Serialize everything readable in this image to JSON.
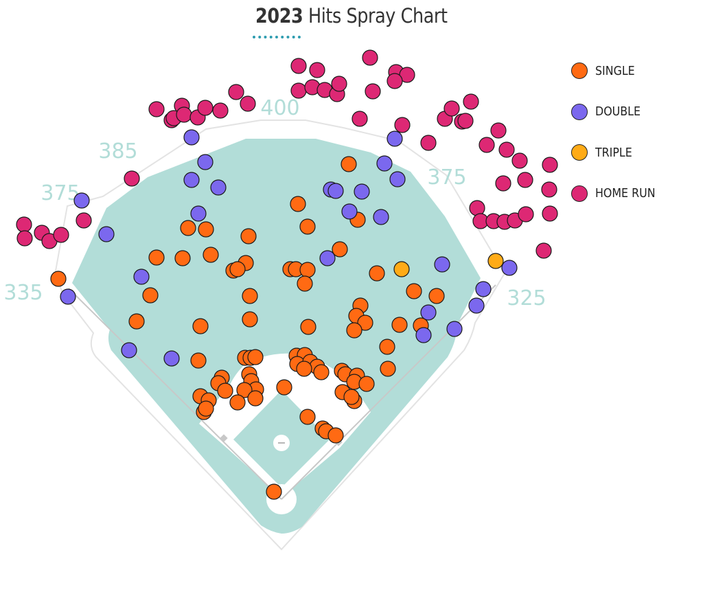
{
  "title": {
    "year": "2023",
    "text": "Hits Spray Chart"
  },
  "field": {
    "grass_color": "#b2ddd8",
    "line_color": "#e3e3e3",
    "distance_color": "#b2ddd8",
    "distances": [
      "335",
      "375",
      "385",
      "400",
      "375",
      "325"
    ]
  },
  "legend": [
    {
      "key": "single",
      "label": "SINGLE",
      "color": "#ff6a13"
    },
    {
      "key": "double",
      "label": "DOUBLE",
      "color": "#7b68ee"
    },
    {
      "key": "triple",
      "label": "TRIPLE",
      "color": "#ffab17"
    },
    {
      "key": "home_run",
      "label": "HOME RUN",
      "color": "#dd2874"
    }
  ],
  "chart_data": {
    "type": "scatter",
    "title": "2023 Hits Spray Chart",
    "xlabel": "",
    "ylabel": "",
    "xlim": [
      0,
      1024
    ],
    "ylim": [
      0,
      881
    ],
    "series": [
      {
        "name": "SINGLE",
        "color": "#ff6a13",
        "points": [
          [
            508,
            239
          ],
          [
            434,
            297
          ],
          [
            448,
            330
          ],
          [
            521,
            320
          ],
          [
            274,
            332
          ],
          [
            300,
            334
          ],
          [
            362,
            344
          ],
          [
            495,
            363
          ],
          [
            228,
            375
          ],
          [
            266,
            376
          ],
          [
            307,
            371
          ],
          [
            358,
            383
          ],
          [
            340,
            394
          ],
          [
            346,
            392
          ],
          [
            423,
            392
          ],
          [
            431,
            392
          ],
          [
            448,
            393
          ],
          [
            444,
            413
          ],
          [
            549,
            398
          ],
          [
            219,
            430
          ],
          [
            364,
            431
          ],
          [
            603,
            424
          ],
          [
            636,
            431
          ],
          [
            525,
            445
          ],
          [
            519,
            460
          ],
          [
            532,
            470
          ],
          [
            516,
            481
          ],
          [
            199,
            468
          ],
          [
            292,
            475
          ],
          [
            364,
            465
          ],
          [
            449,
            476
          ],
          [
            582,
            473
          ],
          [
            613,
            474
          ],
          [
            564,
            505
          ],
          [
            565,
            537
          ],
          [
            289,
            525
          ],
          [
            357,
            521
          ],
          [
            365,
            521
          ],
          [
            372,
            520
          ],
          [
            432,
            518
          ],
          [
            444,
            517
          ],
          [
            433,
            530
          ],
          [
            452,
            527
          ],
          [
            462,
            534
          ],
          [
            443,
            537
          ],
          [
            468,
            542
          ],
          [
            498,
            540
          ],
          [
            503,
            545
          ],
          [
            520,
            547
          ],
          [
            516,
            556
          ],
          [
            534,
            559
          ],
          [
            363,
            545
          ],
          [
            366,
            555
          ],
          [
            373,
            567
          ],
          [
            323,
            550
          ],
          [
            318,
            558
          ],
          [
            356,
            568
          ],
          [
            414,
            564
          ],
          [
            328,
            569
          ],
          [
            292,
            577
          ],
          [
            304,
            583
          ],
          [
            346,
            586
          ],
          [
            372,
            580
          ],
          [
            297,
            600
          ],
          [
            300,
            595
          ],
          [
            499,
            571
          ],
          [
            516,
            584
          ],
          [
            512,
            578
          ],
          [
            448,
            607
          ],
          [
            470,
            624
          ],
          [
            475,
            628
          ],
          [
            489,
            634
          ],
          [
            399,
            716
          ],
          [
            85,
            406
          ]
        ]
      },
      {
        "name": "DOUBLE",
        "color": "#7b68ee",
        "points": [
          [
            279,
            200
          ],
          [
            299,
            236
          ],
          [
            279,
            262
          ],
          [
            318,
            273
          ],
          [
            575,
            202
          ],
          [
            560,
            238
          ],
          [
            579,
            261
          ],
          [
            482,
            276
          ],
          [
            489,
            278
          ],
          [
            527,
            279
          ],
          [
            509,
            308
          ],
          [
            555,
            316
          ],
          [
            289,
            311
          ],
          [
            119,
            292
          ],
          [
            155,
            341
          ],
          [
            477,
            376
          ],
          [
            644,
            385
          ],
          [
            742,
            390
          ],
          [
            206,
            403
          ],
          [
            99,
            432
          ],
          [
            704,
            421
          ],
          [
            694,
            445
          ],
          [
            624,
            455
          ],
          [
            617,
            488
          ],
          [
            662,
            479
          ],
          [
            188,
            510
          ],
          [
            250,
            522
          ]
        ]
      },
      {
        "name": "TRIPLE",
        "color": "#ffab17",
        "points": [
          [
            585,
            392
          ],
          [
            722,
            380
          ]
        ]
      },
      {
        "name": "HOME RUN",
        "color": "#dd2874",
        "points": [
          [
            228,
            159
          ],
          [
            250,
            175
          ],
          [
            253,
            172
          ],
          [
            265,
            154
          ],
          [
            268,
            167
          ],
          [
            288,
            171
          ],
          [
            299,
            157
          ],
          [
            321,
            161
          ],
          [
            344,
            134
          ],
          [
            361,
            151
          ],
          [
            435,
            96
          ],
          [
            462,
            102
          ],
          [
            435,
            132
          ],
          [
            455,
            127
          ],
          [
            473,
            131
          ],
          [
            491,
            137
          ],
          [
            494,
            122
          ],
          [
            539,
            84
          ],
          [
            577,
            105
          ],
          [
            593,
            109
          ],
          [
            575,
            118
          ],
          [
            543,
            133
          ],
          [
            524,
            173
          ],
          [
            586,
            182
          ],
          [
            624,
            208
          ],
          [
            648,
            173
          ],
          [
            658,
            158
          ],
          [
            673,
            177
          ],
          [
            678,
            176
          ],
          [
            686,
            148
          ],
          [
            709,
            211
          ],
          [
            726,
            190
          ],
          [
            738,
            218
          ],
          [
            757,
            234
          ],
          [
            733,
            267
          ],
          [
            765,
            262
          ],
          [
            801,
            240
          ],
          [
            800,
            276
          ],
          [
            695,
            303
          ],
          [
            700,
            322
          ],
          [
            719,
            322
          ],
          [
            735,
            323
          ],
          [
            750,
            321
          ],
          [
            766,
            312
          ],
          [
            801,
            311
          ],
          [
            792,
            365
          ],
          [
            192,
            260
          ],
          [
            122,
            321
          ],
          [
            35,
            327
          ],
          [
            36,
            347
          ],
          [
            61,
            339
          ],
          [
            72,
            351
          ],
          [
            89,
            342
          ]
        ]
      }
    ]
  }
}
